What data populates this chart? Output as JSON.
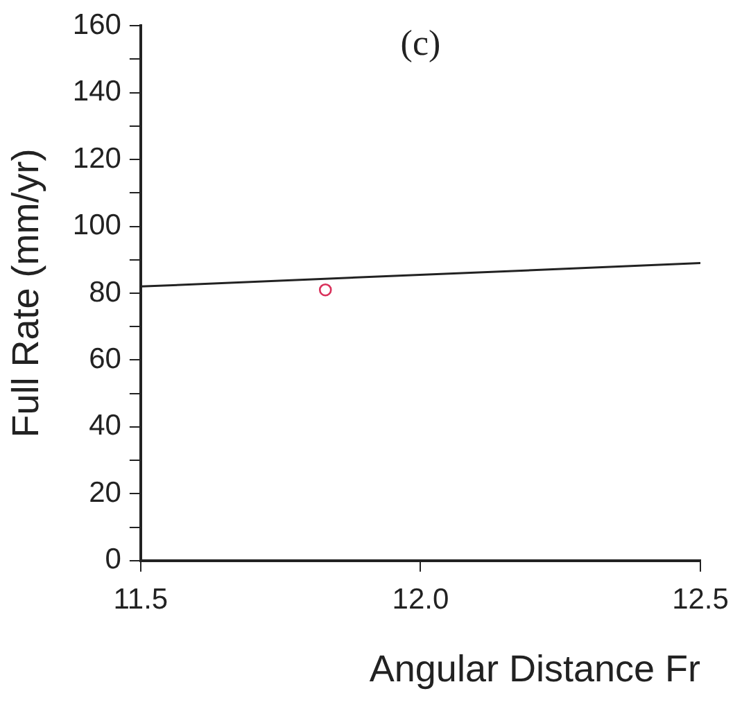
{
  "chart_data": {
    "type": "line",
    "title": "(c)",
    "xlabel": "Angular Distance Fr",
    "ylabel": "Full Rate (mm/yr)",
    "xlim": [
      11.5,
      12.5
    ],
    "xticks": [
      11.5,
      {
        "value": 12,
        "label": "12.0"
      },
      12.5
    ],
    "ylim": [
      0,
      160
    ],
    "yticks": [
      0,
      {
        "value": 10,
        "label": null
      },
      20,
      {
        "value": 30,
        "label": null
      },
      40,
      {
        "value": 50,
        "label": null
      },
      60,
      {
        "value": 70,
        "label": null
      },
      80,
      {
        "value": 90,
        "label": null
      },
      100,
      {
        "value": 110,
        "label": null
      },
      120,
      {
        "value": 130,
        "label": null
      },
      140,
      {
        "value": 150,
        "label": null
      },
      160
    ],
    "grid": false,
    "legend": false,
    "series": [
      {
        "type": "line",
        "color": "#222222",
        "x": [
          11.5,
          12.5
        ],
        "values": [
          82,
          89
        ],
        "marker": "none",
        "line_style": "solid"
      },
      {
        "type": "scatter",
        "color": "#d9305a",
        "x": [
          11.83
        ],
        "values": [
          81
        ],
        "marker": "circle"
      }
    ]
  }
}
